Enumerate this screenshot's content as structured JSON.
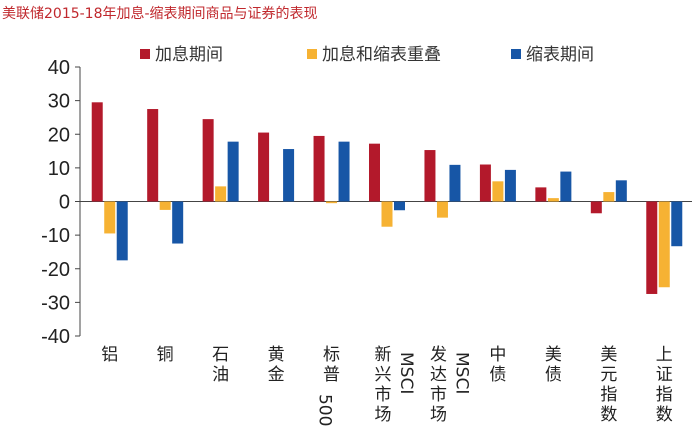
{
  "chart_data": {
    "type": "bar",
    "title": "美联储2015-18年加息-缩表期间商品与证券的表现",
    "categories": [
      {
        "label": "铝",
        "lines": [
          "铝"
        ]
      },
      {
        "label": "铜",
        "lines": [
          "铜"
        ]
      },
      {
        "label": "石油",
        "lines": [
          "石",
          "油"
        ]
      },
      {
        "label": "黄金",
        "lines": [
          "黄",
          "金"
        ]
      },
      {
        "label": "标普500",
        "lines": [
          "标",
          "普",
          "500"
        ]
      },
      {
        "label": "新兴市场MSCI",
        "lines": [
          "新",
          "兴",
          "市",
          "场"
        ],
        "side": "MSCI"
      },
      {
        "label": "发达市场MSCI",
        "lines": [
          "发",
          "达",
          "市",
          "场"
        ],
        "side": "MSCI"
      },
      {
        "label": "中债",
        "lines": [
          "中",
          "债"
        ]
      },
      {
        "label": "美债",
        "lines": [
          "美",
          "债"
        ]
      },
      {
        "label": "美元指数",
        "lines": [
          "美",
          "元",
          "指",
          "数"
        ]
      },
      {
        "label": "上证指数",
        "lines": [
          "上",
          "证",
          "指",
          "数"
        ]
      }
    ],
    "series": [
      {
        "name": "加息期间",
        "color": "#b3192b",
        "values": [
          29.5,
          27.5,
          24.5,
          20.5,
          19.5,
          17.2,
          15.3,
          11,
          4.2,
          -3.5,
          -27.5
        ]
      },
      {
        "name": "加息和缩表重叠",
        "color": "#f6b233",
        "values": [
          -9.5,
          -2.5,
          4.5,
          0,
          -0.5,
          -7.5,
          -4.8,
          6,
          1,
          2.8,
          -25.5
        ]
      },
      {
        "name": "缩表期间",
        "color": "#1756a6",
        "values": [
          -17.5,
          -12.5,
          17.8,
          15.6,
          17.8,
          -2.6,
          10.9,
          9.4,
          8.9,
          6.3,
          -13.3
        ]
      }
    ],
    "ylim": [
      -40,
      40
    ],
    "yticks": [
      40,
      30,
      20,
      10,
      0,
      -10,
      -20,
      -30,
      -40
    ],
    "grid": false,
    "legend_position": "top"
  }
}
